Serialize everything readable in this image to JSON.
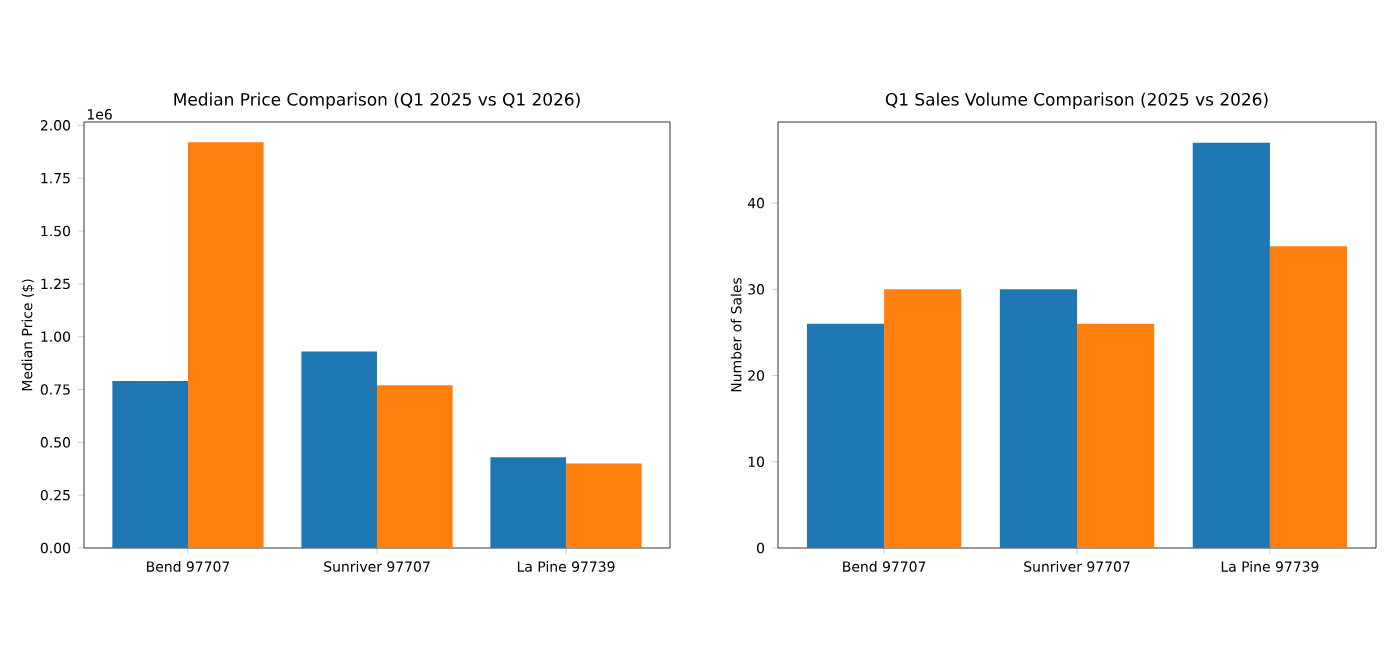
{
  "chart_data": [
    {
      "type": "bar",
      "title": "Median Price Comparison (Q1 2025 vs Q1 2026)",
      "ylabel": "Median Price ($)",
      "categories": [
        "Bend 97707",
        "Sunriver 97707",
        "La Pine 97739"
      ],
      "series": [
        {
          "color": "#1f77b4",
          "values": [
            0.79,
            0.93,
            0.43
          ]
        },
        {
          "color": "#ff7f0e",
          "values": [
            1.92,
            0.77,
            0.4
          ]
        }
      ],
      "ylim": [
        0,
        2.016
      ],
      "yticks": [
        {
          "value": 0,
          "label": "0.00"
        },
        0.25,
        {
          "value": 0.5,
          "label": "0.50"
        },
        0.75,
        {
          "value": 1,
          "label": "1.00"
        },
        1.25,
        {
          "value": 1.5,
          "label": "1.50"
        },
        1.75,
        {
          "value": 2,
          "label": "2.00"
        }
      ],
      "annotations": [
        "1e6"
      ]
    },
    {
      "type": "bar",
      "title": "Q1 Sales Volume Comparison (2025 vs 2026)",
      "ylabel": "Number of Sales",
      "categories": [
        "Bend 97707",
        "Sunriver 97707",
        "La Pine 97739"
      ],
      "series": [
        {
          "color": "#1f77b4",
          "values": [
            26,
            30,
            47
          ]
        },
        {
          "color": "#ff7f0e",
          "values": [
            30,
            26,
            35
          ]
        }
      ],
      "ylim": [
        0,
        49.4
      ],
      "yticks": [
        0,
        10,
        20,
        30,
        40
      ]
    }
  ]
}
